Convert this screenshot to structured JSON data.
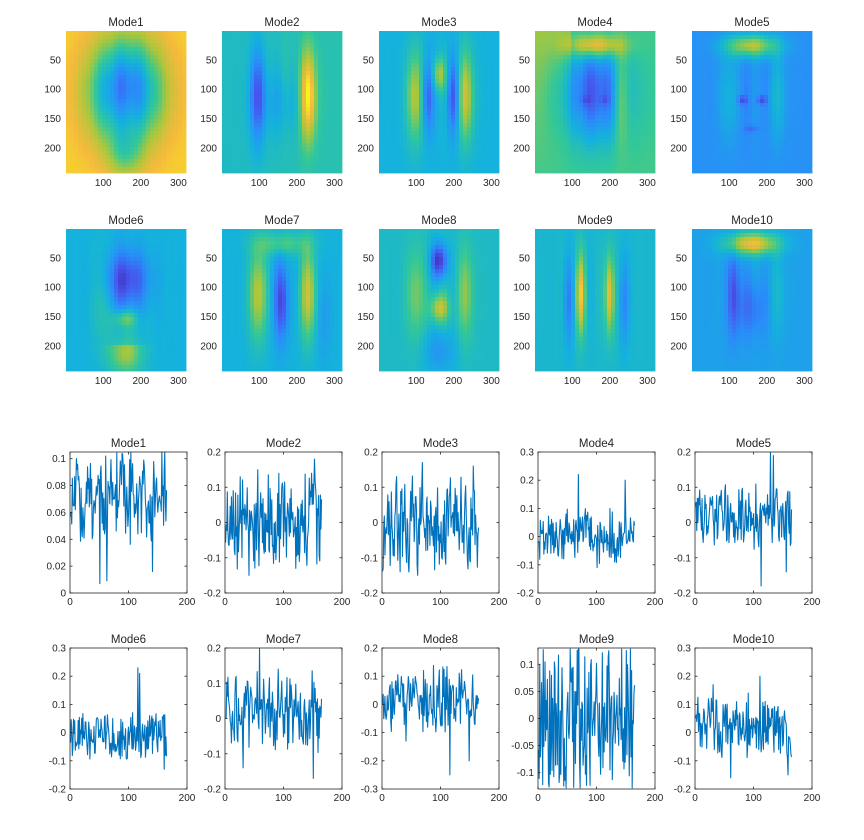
{
  "colors": {
    "series": "#0072bd",
    "axes": "#262626",
    "background": "#ffffff"
  },
  "chart_data": [
    {
      "type": "heatmap",
      "description_rows": 2,
      "colormap": "parula",
      "x_ticks": [
        100,
        200,
        300
      ],
      "y_ticks": [
        50,
        100,
        150,
        200
      ],
      "xlim": [
        1,
        320
      ],
      "ylim": [
        1,
        243
      ],
      "panels": [
        {
          "title": "Mode1",
          "pattern": "mode1"
        },
        {
          "title": "Mode2",
          "pattern": "mode2"
        },
        {
          "title": "Mode3",
          "pattern": "mode3"
        },
        {
          "title": "Mode4",
          "pattern": "mode4"
        },
        {
          "title": "Mode5",
          "pattern": "mode5"
        },
        {
          "title": "Mode6",
          "pattern": "mode6"
        },
        {
          "title": "Mode7",
          "pattern": "mode7"
        },
        {
          "title": "Mode8",
          "pattern": "mode8"
        },
        {
          "title": "Mode9",
          "pattern": "mode9"
        },
        {
          "title": "Mode10",
          "pattern": "mode10"
        }
      ]
    },
    {
      "type": "line",
      "x_ticks": [
        0,
        100,
        200
      ],
      "xlim": [
        0,
        200
      ],
      "n_points": 165,
      "panels": [
        {
          "title": "Mode1",
          "ylim": [
            0,
            0.105
          ],
          "y_ticks": [
            0,
            0.02,
            0.04,
            0.06,
            0.08,
            0.1
          ],
          "y_tick_labels": [
            "0",
            "0.02",
            "0.04",
            "0.06",
            "0.08",
            "0.1"
          ],
          "base": 0.072,
          "amp": 0.018,
          "clip": [
            0.006,
            0.105
          ],
          "seed": 11,
          "spikes": [
            [
              50,
              0.007
            ],
            [
              62,
              0.009
            ],
            [
              140,
              0.016
            ],
            [
              88,
              0.104
            ],
            [
              60,
              0.102
            ]
          ]
        },
        {
          "title": "Mode2",
          "ylim": [
            -0.2,
            0.2
          ],
          "y_ticks": [
            -0.2,
            -0.1,
            0,
            0.1,
            0.2
          ],
          "y_tick_labels": [
            "-0.2",
            "-0.1",
            "0",
            "0.1",
            "0.2"
          ],
          "base": 0.0,
          "amp": 0.07,
          "clip": [
            -0.16,
            0.18
          ],
          "seed": 23,
          "spikes": [
            [
              55,
              0.15
            ],
            [
              152,
              0.18
            ],
            [
              40,
              -0.15
            ],
            [
              120,
              -0.13
            ]
          ]
        },
        {
          "title": "Mode3",
          "ylim": [
            -0.2,
            0.2
          ],
          "y_ticks": [
            -0.2,
            -0.1,
            0,
            0.1,
            0.2
          ],
          "y_tick_labels": [
            "-0.2",
            "-0.1",
            "0",
            "0.1",
            "0.2"
          ],
          "base": 0.0,
          "amp": 0.075,
          "clip": [
            -0.15,
            0.17
          ],
          "seed": 37,
          "spikes": [
            [
              68,
              0.17
            ],
            [
              30,
              -0.14
            ],
            [
              60,
              -0.15
            ],
            [
              155,
              0.16
            ]
          ]
        },
        {
          "title": "Mode4",
          "ylim": [
            -0.2,
            0.3
          ],
          "y_ticks": [
            -0.2,
            -0.1,
            0,
            0.1,
            0.2,
            0.3
          ],
          "y_tick_labels": [
            "-0.2",
            "-0.1",
            "0",
            "0.1",
            "0.2",
            "0.3"
          ],
          "base": 0.0,
          "amp": 0.05,
          "clip": [
            -0.12,
            0.22
          ],
          "seed": 41,
          "spikes": [
            [
              68,
              0.22
            ],
            [
              148,
              0.2
            ],
            [
              100,
              -0.11
            ],
            [
              130,
              -0.09
            ]
          ]
        },
        {
          "title": "Mode5",
          "ylim": [
            -0.2,
            0.2
          ],
          "y_ticks": [
            -0.2,
            -0.1,
            0,
            0.1,
            0.2
          ],
          "y_tick_labels": [
            "-0.2",
            "-0.1",
            "0",
            "0.1",
            "0.2"
          ],
          "base": 0.02,
          "amp": 0.05,
          "clip": [
            -0.18,
            0.2
          ],
          "seed": 53,
          "spikes": [
            [
              128,
              0.2
            ],
            [
              133,
              0.19
            ],
            [
              112,
              -0.18
            ],
            [
              155,
              -0.14
            ]
          ]
        },
        {
          "title": "Mode6",
          "ylim": [
            -0.2,
            0.3
          ],
          "y_ticks": [
            -0.2,
            -0.1,
            0,
            0.1,
            0.2,
            0.3
          ],
          "y_tick_labels": [
            "-0.2",
            "-0.1",
            "0",
            "0.1",
            "0.2",
            "0.3"
          ],
          "base": -0.02,
          "amp": 0.05,
          "clip": [
            -0.13,
            0.23
          ],
          "seed": 61,
          "spikes": [
            [
              115,
              0.23
            ],
            [
              118,
              0.21
            ],
            [
              95,
              -0.09
            ],
            [
              160,
              -0.13
            ]
          ]
        },
        {
          "title": "Mode7",
          "ylim": [
            -0.2,
            0.2
          ],
          "y_ticks": [
            -0.2,
            -0.1,
            0,
            0.1,
            0.2
          ],
          "y_tick_labels": [
            "-0.2",
            "-0.1",
            "0",
            "0.1",
            "0.2"
          ],
          "base": 0.02,
          "amp": 0.06,
          "clip": [
            -0.17,
            0.2
          ],
          "seed": 71,
          "spikes": [
            [
              58,
              0.2
            ],
            [
              30,
              -0.14
            ],
            [
              150,
              -0.17
            ],
            [
              90,
              0.14
            ]
          ]
        },
        {
          "title": "Mode8",
          "ylim": [
            -0.3,
            0.2
          ],
          "y_ticks": [
            -0.3,
            -0.2,
            -0.1,
            0,
            0.1,
            0.2
          ],
          "y_tick_labels": [
            "-0.3",
            "-0.2",
            "-0.1",
            "0",
            "0.1",
            "0.2"
          ],
          "base": 0.02,
          "amp": 0.06,
          "clip": [
            -0.25,
            0.14
          ],
          "seed": 83,
          "spikes": [
            [
              115,
              -0.25
            ],
            [
              40,
              -0.13
            ],
            [
              148,
              -0.2
            ],
            [
              70,
              0.12
            ]
          ]
        },
        {
          "title": "Mode9",
          "ylim": [
            -0.13,
            0.13
          ],
          "y_ticks": [
            -0.1,
            -0.05,
            0,
            0.05,
            0.1
          ],
          "y_tick_labels": [
            "-0.1",
            "-0.05",
            "0",
            "0.05",
            "0.1"
          ],
          "base": 0.0,
          "amp": 0.08,
          "clip": [
            -0.128,
            0.128
          ],
          "seed": 97,
          "spikes": [
            [
              8,
              0.127
            ],
            [
              60,
              -0.127
            ],
            [
              160,
              -0.128
            ],
            [
              120,
              0.125
            ]
          ]
        },
        {
          "title": "Mode10",
          "ylim": [
            -0.2,
            0.3
          ],
          "y_ticks": [
            -0.2,
            -0.1,
            0,
            0.1,
            0.2,
            0.3
          ],
          "y_tick_labels": [
            "-0.2",
            "-0.1",
            "0",
            "0.1",
            "0.2",
            "0.3"
          ],
          "base": 0.02,
          "amp": 0.06,
          "clip": [
            -0.16,
            0.2
          ],
          "seed": 107,
          "spikes": [
            [
              110,
              0.2
            ],
            [
              60,
              -0.16
            ],
            [
              158,
              -0.15
            ],
            [
              30,
              0.17
            ]
          ]
        }
      ]
    }
  ]
}
